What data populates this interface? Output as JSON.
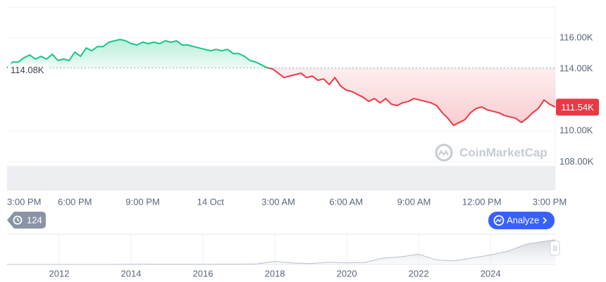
{
  "chart_data": {
    "type": "line",
    "series": [
      {
        "color": "#16c784",
        "color_below": "#ea3943",
        "values": [
          114080,
          114450,
          114450,
          114730,
          114910,
          114640,
          114820,
          114640,
          114950,
          114550,
          114640,
          114550,
          115090,
          114820,
          115360,
          115180,
          115450,
          115450,
          115730,
          115820,
          115910,
          115820,
          115640,
          115550,
          115730,
          115640,
          115730,
          115640,
          115820,
          115730,
          115820,
          115550,
          115550,
          115450,
          115360,
          115270,
          115180,
          115270,
          115180,
          115270,
          115000,
          115000,
          114820,
          114550,
          114450,
          114270,
          114090,
          114000,
          113730,
          113450,
          113550,
          113640,
          113730,
          113450,
          113550,
          113270,
          113360,
          113000,
          113450,
          112910,
          112640,
          112550,
          112360,
          112180,
          111910,
          112090,
          111820,
          112090,
          111730,
          111640,
          111820,
          111910,
          112090,
          112000,
          111910,
          111820,
          111640,
          111180,
          110820,
          110360,
          110550,
          110730,
          111180,
          111450,
          111550,
          111360,
          111270,
          111180,
          111000,
          110910,
          110820,
          110550,
          110820,
          111180,
          111450,
          112000,
          111730,
          111540
        ]
      }
    ],
    "baseline": {
      "value": 114080,
      "label": "114.08K"
    },
    "current_price": {
      "value": 111540,
      "label": "111.54K"
    },
    "ylim": [
      106200,
      118000
    ],
    "yticks": [
      {
        "value": 108000,
        "label": "108.00K"
      },
      {
        "value": 110000,
        "label": "110.00K"
      },
      {
        "value": 114000,
        "label": "114.00K"
      },
      {
        "value": 116000,
        "label": "116.00K"
      }
    ],
    "xtick_labels": [
      "3:00 PM",
      "6:00 PM",
      "9:00 PM",
      "14 Oct",
      "3:00 AM",
      "6:00 AM",
      "9:00 AM",
      "12:00 PM",
      "3:00 PM"
    ],
    "grid": true,
    "watermark": "CoinMarketCap",
    "history_count": 124,
    "analyze_button": "Analyze",
    "navigator": {
      "x": [
        2010.55,
        2011,
        2011.5,
        2012,
        2012.5,
        2013,
        2013.5,
        2014,
        2014.5,
        2015,
        2015.5,
        2016,
        2016.5,
        2017,
        2017.5,
        2018,
        2018.5,
        2019,
        2019.5,
        2020,
        2020.5,
        2021,
        2021.5,
        2022,
        2022.5,
        2023,
        2023.5,
        2024,
        2024.5,
        2025,
        2025.5,
        2025.8
      ],
      "values": [
        0,
        1,
        15,
        5,
        7,
        13,
        100,
        800,
        600,
        300,
        250,
        430,
        650,
        1000,
        2500,
        14000,
        6500,
        3800,
        10000,
        7200,
        9200,
        29000,
        35000,
        47000,
        20000,
        16500,
        30000,
        44000,
        62000,
        94000,
        107000,
        114000
      ],
      "xlim": [
        2010.55,
        2025.8
      ],
      "ylim": [
        0,
        130000
      ],
      "xticks": [
        2012,
        2014,
        2016,
        2018,
        2020,
        2022,
        2024
      ]
    }
  }
}
